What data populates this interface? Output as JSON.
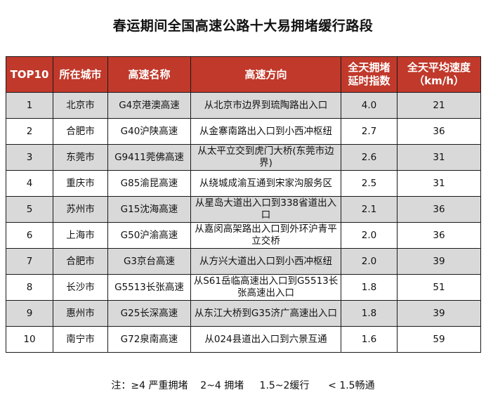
{
  "title": "春运期间全国高速公路十大易拥堵缓行路段",
  "colors": {
    "header_bg": "#c0392b",
    "header_text": "#ffffff",
    "row_shade": "#d9d9d9",
    "row_plain": "#ffffff"
  },
  "table": {
    "headers": [
      "TOP10",
      "所在城市",
      "高速名称",
      "高速方向",
      "全天拥堵延时指数",
      "全天平均速度（km/h）"
    ],
    "rows": [
      [
        "1",
        "北京市",
        "G4京港澳高速",
        "从北京市边界到琉陶路出入口",
        "4.0",
        "21"
      ],
      [
        "2",
        "合肥市",
        "G40沪陕高速",
        "从金寨南路出入口到小西冲枢纽",
        "2.7",
        "36"
      ],
      [
        "3",
        "东莞市",
        "G9411莞佛高速",
        "从太平立交到虎门大桥(东莞市边界)",
        "2.6",
        "31"
      ],
      [
        "4",
        "重庆市",
        "G85渝昆高速",
        "从绕城成渝互通到宋家沟服务区",
        "2.5",
        "31"
      ],
      [
        "5",
        "苏州市",
        "G15沈海高速",
        "从星岛大道出入口到338省道出入口",
        "2.1",
        "36"
      ],
      [
        "6",
        "上海市",
        "G50沪渝高速",
        "从嘉闵高架路出入口到外环沪青平立交桥",
        "2.0",
        "36"
      ],
      [
        "7",
        "合肥市",
        "G3京台高速",
        "从方兴大道出入口到小西冲枢纽",
        "2.0",
        "39"
      ],
      [
        "8",
        "长沙市",
        "G5513长张高速",
        "从S61岳临高速出入口到G5513长张高速出入口",
        "1.8",
        "51"
      ],
      [
        "9",
        "惠州市",
        "G25长深高速",
        "从东江大桥到G35济广高速出入口",
        "1.8",
        "39"
      ],
      [
        "10",
        "南宁市",
        "G72泉南高速",
        "从024县道出入口到六景互通",
        "1.6",
        "59"
      ]
    ]
  },
  "note": "注：≥4 严重拥堵    2~4 拥堵     1.5~2缓行      < 1.5畅通"
}
